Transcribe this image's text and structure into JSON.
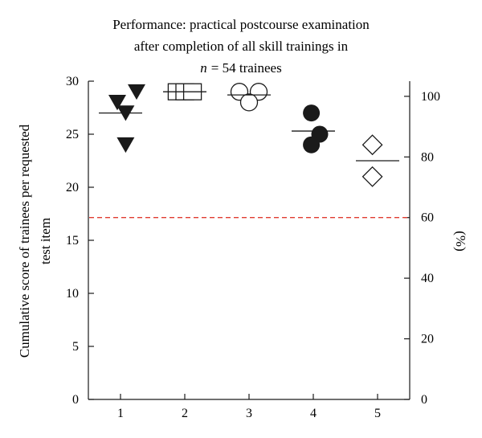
{
  "chart_data": {
    "type": "scatter",
    "title_lines": [
      "Performance: practical postcourse examination",
      "after completion of all skill trainings in",
      "= 54 trainees"
    ],
    "title_n_symbol": "n",
    "ylabel_lines": [
      "Cumulative score of trainees per requested",
      "test item"
    ],
    "y2label": "(%)",
    "x_ticks": [
      "1",
      "2",
      "3",
      "4",
      "5"
    ],
    "y_ticks": [
      "0",
      "5",
      "10",
      "15",
      "20",
      "25",
      "30"
    ],
    "y2_ticks": [
      "0",
      "20",
      "40",
      "60",
      "80",
      "100"
    ],
    "xlim": [
      0.5,
      5.5
    ],
    "ylim": [
      0,
      30
    ],
    "y2lim": [
      0,
      105
    ],
    "threshold": {
      "axis": "y2",
      "value": 60,
      "style": "dashed",
      "color": "#e03c31"
    },
    "series": [
      {
        "group": 1,
        "marker": "filled-triangle-down",
        "points": [
          [
            0.95,
            28
          ],
          [
            1.25,
            29
          ],
          [
            1.08,
            27
          ],
          [
            1.08,
            24
          ]
        ],
        "mean": 27
      },
      {
        "group": 2,
        "marker": "open-square",
        "points": [
          [
            1.88,
            29
          ],
          [
            2.0,
            29
          ],
          [
            2.12,
            29
          ]
        ],
        "mean": 29
      },
      {
        "group": 3,
        "marker": "open-circle",
        "points": [
          [
            2.85,
            29
          ],
          [
            3.15,
            29
          ],
          [
            3.0,
            28
          ]
        ],
        "mean": 28.7
      },
      {
        "group": 4,
        "marker": "filled-circle",
        "points": [
          [
            3.97,
            27
          ],
          [
            4.1,
            25
          ],
          [
            3.97,
            24
          ]
        ],
        "mean": 25.3
      },
      {
        "group": 5,
        "marker": "open-diamond",
        "points": [
          [
            4.92,
            24
          ],
          [
            4.92,
            21
          ]
        ],
        "mean": 22.5
      }
    ]
  }
}
